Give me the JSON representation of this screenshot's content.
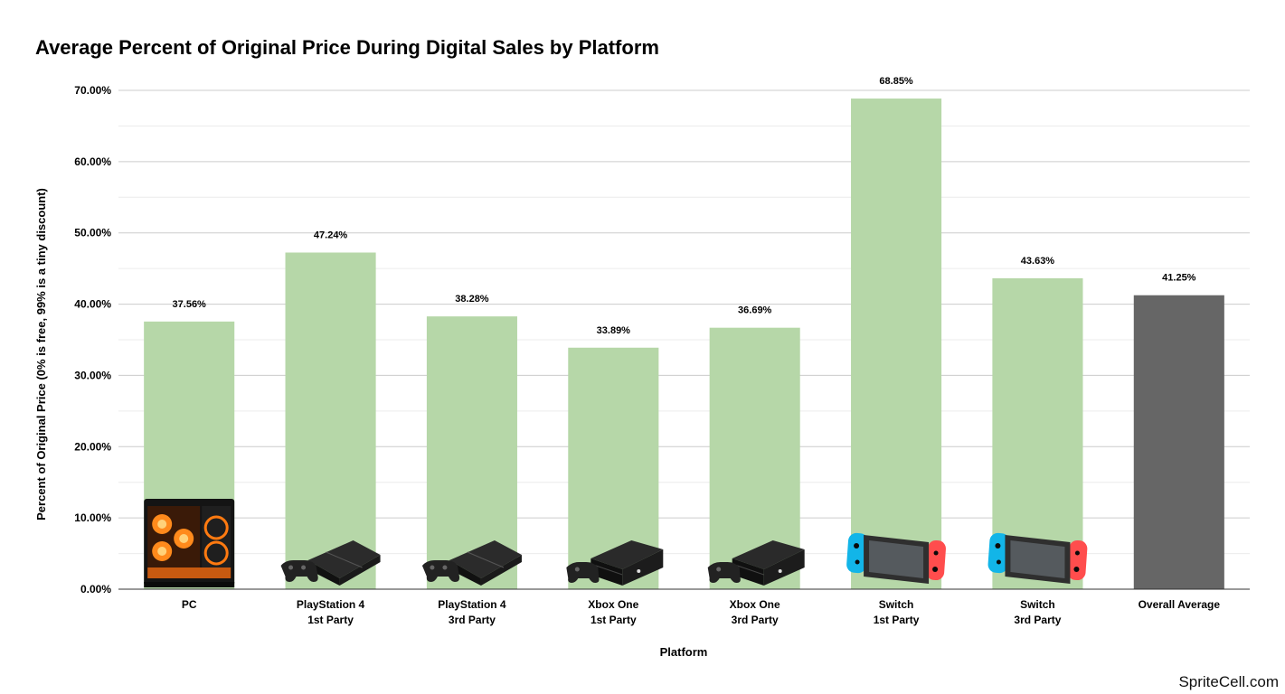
{
  "chart_data": {
    "type": "bar",
    "title": "Average Percent of Original Price During Digital Sales by Platform",
    "xlabel": "Platform",
    "ylabel": "Percent of Original Price (0% is free, 99% is a tiny discount)",
    "ylim": [
      0,
      70
    ],
    "yticks": [
      "0.00%",
      "10.00%",
      "20.00%",
      "30.00%",
      "40.00%",
      "50.00%",
      "60.00%",
      "70.00%"
    ],
    "categories": [
      [
        "PC"
      ],
      [
        "PlayStation 4",
        "1st Party"
      ],
      [
        "PlayStation 4",
        "3rd Party"
      ],
      [
        "Xbox One",
        "1st Party"
      ],
      [
        "Xbox One",
        "3rd Party"
      ],
      [
        "Switch",
        "1st Party"
      ],
      [
        "Switch",
        "3rd Party"
      ],
      [
        "Overall Average"
      ]
    ],
    "values": [
      37.56,
      47.24,
      38.28,
      33.89,
      36.69,
      68.85,
      43.63,
      41.25
    ],
    "value_labels": [
      "37.56%",
      "47.24%",
      "38.28%",
      "33.89%",
      "36.69%",
      "68.85%",
      "43.63%",
      "41.25%"
    ],
    "icons": [
      "pc-case-icon",
      "ps4-console-icon",
      "ps4-console-icon",
      "xbox-one-console-icon",
      "xbox-one-console-icon",
      "switch-console-icon",
      "switch-console-icon",
      null
    ],
    "bar_colors": [
      "#b6d7a8",
      "#b6d7a8",
      "#b6d7a8",
      "#b6d7a8",
      "#b6d7a8",
      "#b6d7a8",
      "#b6d7a8",
      "#666666"
    ],
    "grid": true,
    "legend": "none"
  },
  "watermark": "SpriteCell.com"
}
